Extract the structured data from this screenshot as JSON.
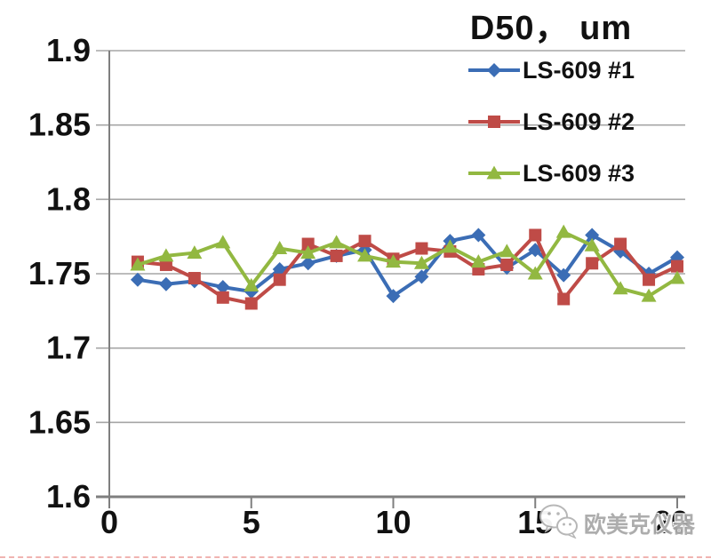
{
  "title": "D50， um",
  "watermark": {
    "text": "欧美克仪器",
    "logo": "wechat-logo-icon"
  },
  "colors": {
    "series1_blue": "#3b6db5",
    "series2_red": "#bf4b47",
    "series3_green": "#92b841",
    "gridline": "#a6a6a6",
    "axis": "#7f7f7f",
    "text": "#111111",
    "watermark_gray": "#a9a9a9",
    "bottom_dash_pink": "#eb9b97"
  },
  "chart_data": {
    "type": "line",
    "title": "D50， um",
    "xlabel": "",
    "ylabel": "",
    "xlim": [
      0,
      20
    ],
    "ylim": [
      1.6,
      1.9
    ],
    "grid": true,
    "legend_position": "top-right",
    "x_ticks": [
      0,
      5,
      10,
      15,
      20
    ],
    "x_tick_labels": [
      "0",
      "5",
      "10",
      "15",
      "20"
    ],
    "y_ticks": [
      1.9,
      1.85,
      1.8,
      1.75,
      1.7,
      1.65,
      1.6
    ],
    "y_tick_labels": [
      "1.9",
      "1.85",
      "1.8",
      "1.75",
      "1.7",
      "1.65",
      "1.6"
    ],
    "x": [
      1,
      2,
      3,
      4,
      5,
      6,
      7,
      8,
      9,
      10,
      11,
      12,
      13,
      14,
      15,
      16,
      17,
      18,
      19,
      20
    ],
    "series": [
      {
        "name": "LS-609 #1",
        "color": "#3b6db5",
        "marker": "diamond",
        "values": [
          1.746,
          1.743,
          1.745,
          1.741,
          1.738,
          1.753,
          1.757,
          1.762,
          1.766,
          1.735,
          1.748,
          1.772,
          1.776,
          1.754,
          1.766,
          1.749,
          1.776,
          1.765,
          1.75,
          1.761
        ]
      },
      {
        "name": "LS-609 #2",
        "color": "#bf4b47",
        "marker": "square",
        "values": [
          1.758,
          1.756,
          1.747,
          1.734,
          1.73,
          1.746,
          1.77,
          1.762,
          1.772,
          1.76,
          1.767,
          1.765,
          1.753,
          1.756,
          1.776,
          1.733,
          1.757,
          1.77,
          1.746,
          1.755
        ]
      },
      {
        "name": "LS-609 #3",
        "color": "#92b841",
        "marker": "triangle",
        "values": [
          1.756,
          1.762,
          1.764,
          1.771,
          1.742,
          1.767,
          1.764,
          1.771,
          1.762,
          1.758,
          1.757,
          1.768,
          1.758,
          1.765,
          1.75,
          1.778,
          1.769,
          1.74,
          1.735,
          1.747
        ]
      }
    ]
  }
}
